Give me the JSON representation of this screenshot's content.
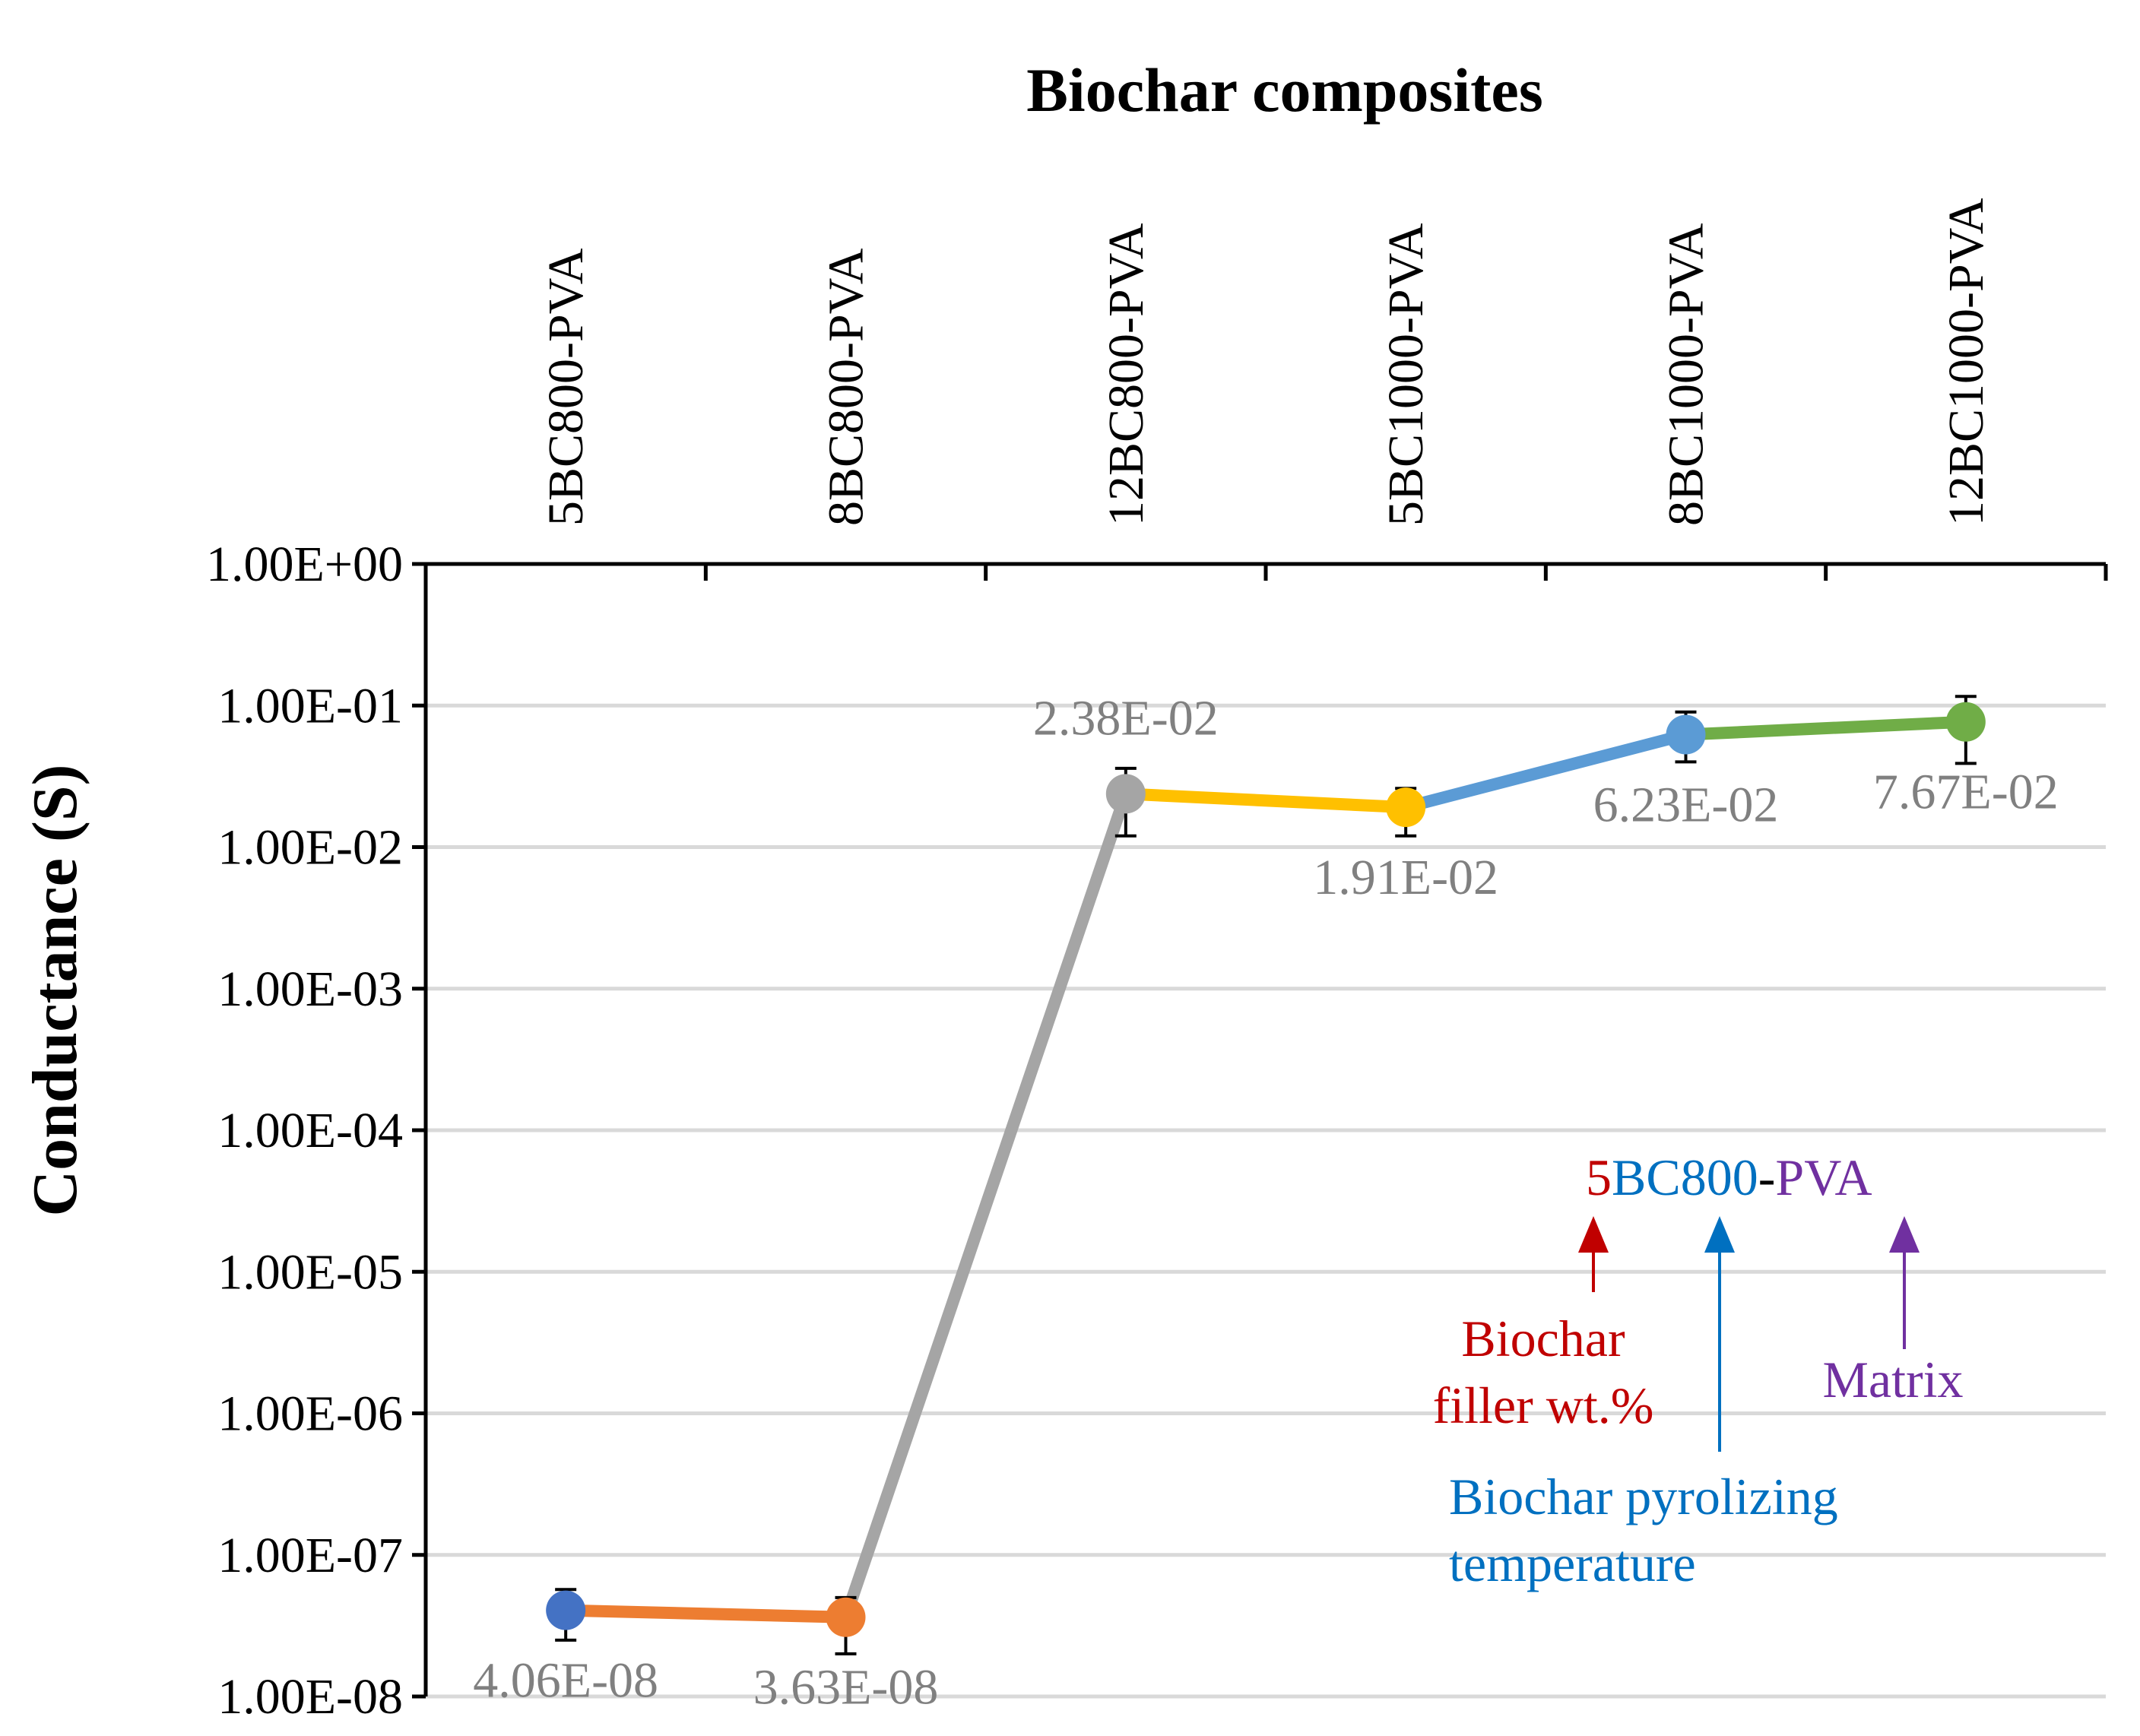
{
  "chart_data": {
    "type": "line",
    "title": "Biochar composites",
    "xlabel": "Biochar composites",
    "ylabel": "Conductance (S)",
    "yscale": "log",
    "ylim": [
      1e-08,
      1
    ],
    "xaxis_position": "top",
    "y_tick_labels": [
      "1.00E+00",
      "1.00E-01",
      "1.00E-02",
      "1.00E-03",
      "1.00E-04",
      "1.00E-05",
      "1.00E-06",
      "1.00E-07",
      "1.00E-08"
    ],
    "y_tick_values": [
      1,
      0.1,
      0.01,
      0.001,
      0.0001,
      1e-05,
      1e-06,
      1e-07,
      1e-08
    ],
    "categories": [
      "5BC800-PVA",
      "8BC800-PVA",
      "12BC800-PVA",
      "5BC1000-PVA",
      "8BC1000-PVA",
      "12BC1000-PVA"
    ],
    "values": [
      4.06e-08,
      3.63e-08,
      0.0238,
      0.0191,
      0.0623,
      0.0767
    ],
    "value_labels": [
      "4.06E-08",
      "3.63E-08",
      "2.38E-02",
      "1.91E-02",
      "6.23E-02",
      "7.67E-02"
    ],
    "value_label_positions": [
      "below",
      "below",
      "above",
      "below",
      "below",
      "below"
    ],
    "error_low": [
      2.5e-08,
      2e-08,
      0.012,
      0.012,
      0.04,
      0.039
    ],
    "error_high": [
      5.7e-08,
      5e-08,
      0.036,
      0.026,
      0.09,
      0.116
    ],
    "marker_colors": [
      "#4472C4",
      "#ED7D31",
      "#A5A5A5",
      "#FFC000",
      "#5B9BD5",
      "#70AD47"
    ],
    "segment_colors": [
      "#ED7D31",
      "#A5A5A5",
      "#FFC000",
      "#5B9BD5",
      "#70AD47"
    ],
    "grid": true,
    "annotation": {
      "parts": [
        {
          "text": "5",
          "color": "#C00000"
        },
        {
          "text": "BC800",
          "color": "#0070C0"
        },
        {
          "text": "-",
          "color": "#000000"
        },
        {
          "text": "PVA",
          "color": "#7030A0"
        }
      ],
      "filler_label": [
        "Biochar",
        "filler wt.%"
      ],
      "filler_color": "#C00000",
      "temperature_label": [
        "Biochar pyrolizing",
        "temperature"
      ],
      "temperature_color": "#0070C0",
      "matrix_label": "Matrix",
      "matrix_color": "#7030A0"
    }
  }
}
